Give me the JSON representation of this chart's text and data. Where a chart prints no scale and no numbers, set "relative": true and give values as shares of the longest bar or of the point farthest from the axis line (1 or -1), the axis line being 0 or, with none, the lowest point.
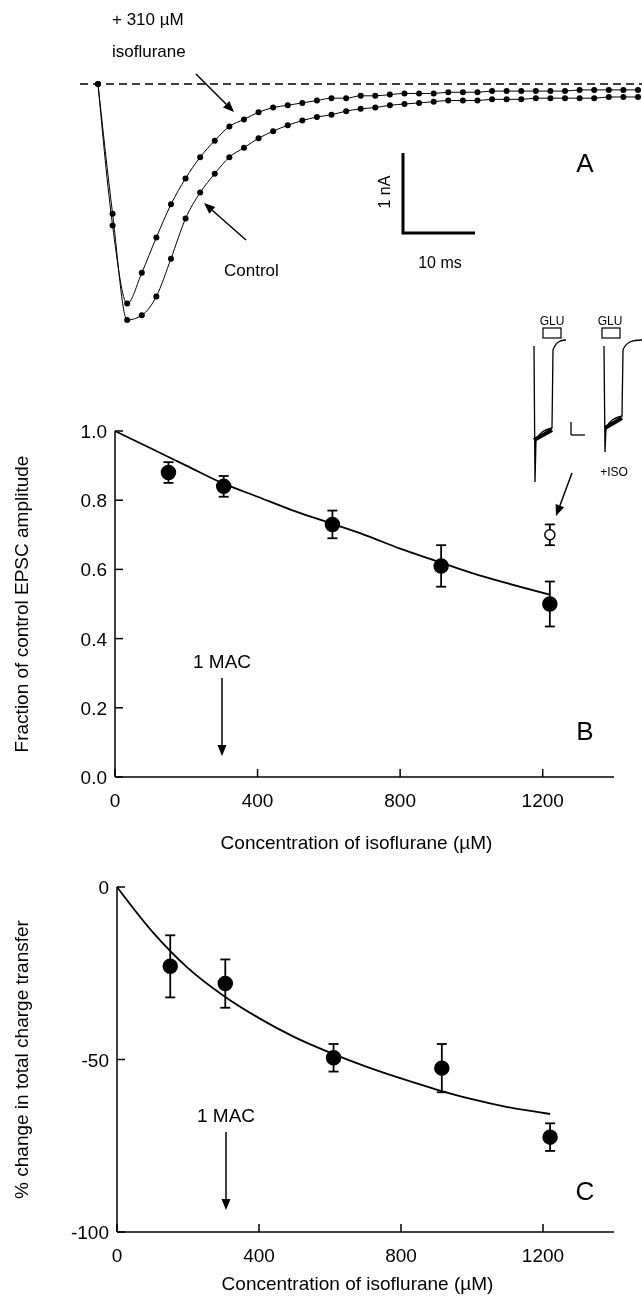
{
  "chart_data": [
    {
      "type": "line",
      "relative": true,
      "categories": [
        null,
        null,
        null,
        null,
        null,
        null,
        null,
        null,
        null,
        null,
        null,
        null,
        null,
        null,
        null,
        null,
        null,
        null,
        null,
        null,
        null,
        null,
        null,
        null,
        null,
        null,
        null,
        null,
        null,
        null,
        null,
        null,
        null,
        null,
        null,
        null,
        null,
        null
      ],
      "series": [
        {
          "name": "+ 310 µM isoflurane",
          "color": "#000000",
          "marker": "circle",
          "values": [
            0,
            -0.6,
            -0.93,
            -0.8,
            -0.65,
            -0.51,
            -0.4,
            -0.31,
            -0.24,
            -0.18,
            -0.15,
            -0.12,
            -0.1,
            -0.09,
            -0.08,
            -0.07,
            -0.06,
            -0.06,
            -0.05,
            -0.05,
            -0.045,
            -0.04,
            -0.04,
            -0.04,
            -0.035,
            -0.035,
            -0.035,
            -0.03,
            -0.03,
            -0.03,
            -0.03,
            -0.03,
            -0.03,
            -0.025,
            -0.025,
            -0.025,
            -0.025,
            -0.025
          ]
        },
        {
          "name": "Control",
          "color": "#000000",
          "marker": "circle",
          "values": [
            0,
            -0.55,
            -1,
            -0.98,
            -0.9,
            -0.74,
            -0.57,
            -0.46,
            -0.38,
            -0.31,
            -0.27,
            -0.23,
            -0.2,
            -0.175,
            -0.155,
            -0.14,
            -0.13,
            -0.115,
            -0.105,
            -0.1,
            -0.09,
            -0.085,
            -0.08,
            -0.075,
            -0.07,
            -0.07,
            -0.07,
            -0.065,
            -0.065,
            -0.065,
            -0.06,
            -0.06,
            -0.06,
            -0.06,
            -0.06,
            -0.055,
            -0.055,
            -0.055
          ]
        }
      ],
      "ref_lines": [
        {
          "axis": "y",
          "value": 0,
          "line_style": "dashed"
        }
      ],
      "annotations": [
        "1 nA",
        "10 ms",
        "A"
      ]
    },
    {
      "type": "scatter",
      "xlabel": "Concentration of isoflurane (µM)",
      "ylabel": "Fraction of control EPSC amplitude",
      "xlim": [
        0,
        1400
      ],
      "ylim": [
        0,
        1.0
      ],
      "xticks": [
        0,
        400,
        800,
        1200
      ],
      "yticks": [
        {
          "value": 0,
          "label": "0.0"
        },
        {
          "value": 0.2,
          "label": "0.2"
        },
        {
          "value": 0.4,
          "label": "0.4"
        },
        {
          "value": 0.6,
          "label": "0.6"
        },
        {
          "value": 0.8,
          "label": "0.8"
        },
        {
          "value": 1.0,
          "label": "1.0"
        }
      ],
      "series": [
        {
          "color": "#000000",
          "marker": "circle",
          "x": [
            150,
            305,
            610,
            915,
            1220
          ],
          "values": [
            0.88,
            0.84,
            0.73,
            0.61,
            0.5
          ],
          "errors": [
            0.03,
            0.03,
            0.04,
            0.06,
            0.065
          ]
        },
        {
          "color": "#ffffff",
          "marker": "circle",
          "x": [
            1220
          ],
          "values": [
            0.7
          ],
          "errors": [
            0.03
          ]
        },
        {
          "type": "line",
          "color": "#000000",
          "x": [
            0,
            100,
            200,
            300,
            400,
            500,
            600,
            700,
            800,
            900,
            1000,
            1100,
            1220
          ],
          "values": [
            1.0,
            0.95,
            0.9,
            0.85,
            0.81,
            0.77,
            0.735,
            0.7,
            0.66,
            0.625,
            0.59,
            0.56,
            0.527
          ]
        }
      ],
      "annotations": [
        "1 MAC",
        "B",
        "GLU",
        "GLU",
        "+ISO"
      ]
    },
    {
      "type": "scatter",
      "xlabel": "Concentration of isoflurane (µM)",
      "ylabel": "% change in total charge transfer",
      "xlim": [
        0,
        1400
      ],
      "ylim": [
        -100,
        0
      ],
      "xticks": [
        0,
        400,
        800,
        1200
      ],
      "yticks": [
        -100,
        -50,
        0
      ],
      "series": [
        {
          "color": "#000000",
          "marker": "circle",
          "x": [
            150,
            305,
            610,
            915,
            1220
          ],
          "values": [
            -23,
            -28,
            -49.5,
            -52.5,
            -72.5
          ],
          "errors": [
            9,
            7,
            4,
            7,
            4
          ]
        },
        {
          "type": "line",
          "color": "#000000",
          "x": [
            0,
            100,
            200,
            300,
            400,
            500,
            600,
            700,
            800,
            900,
            1000,
            1100,
            1220
          ],
          "values": [
            0,
            -13,
            -23.5,
            -31.5,
            -38,
            -43.5,
            -48,
            -52,
            -55.5,
            -58.7,
            -61.5,
            -63.8,
            -65.8
          ]
        }
      ],
      "annotations": [
        "1 MAC",
        "C"
      ]
    }
  ]
}
